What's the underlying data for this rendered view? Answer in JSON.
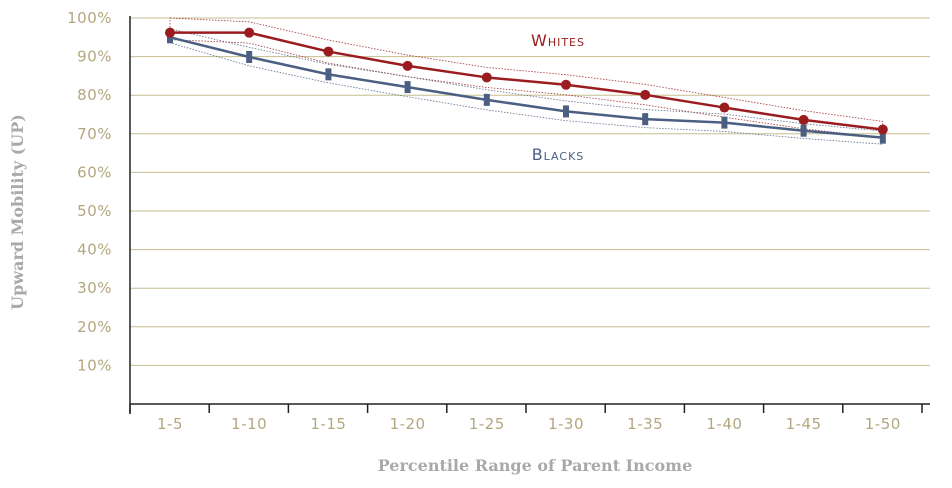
{
  "chart_data": {
    "type": "line",
    "title": "",
    "xlabel": "Percentile Range of Parent Income",
    "ylabel": "Upward Mobility (UP)",
    "categories": [
      "1-5",
      "1-10",
      "1-15",
      "1-20",
      "1-25",
      "1-30",
      "1-35",
      "1-40",
      "1-45",
      "1-50"
    ],
    "ylim": [
      0,
      100
    ],
    "yticks": [
      "10%",
      "20%",
      "30%",
      "40%",
      "50%",
      "60%",
      "70%",
      "80%",
      "90%",
      "100%"
    ],
    "grid": "horizontal",
    "legend": "inline labels",
    "series": [
      {
        "name": "Whites",
        "display_label": "Whites",
        "color": "#9b1c1f",
        "marker": "circle",
        "values": [
          96.2,
          96.2,
          91.3,
          87.6,
          84.6,
          82.7,
          80.1,
          76.8,
          73.6,
          71.1
        ],
        "band_upper": [
          100,
          99.0,
          94.3,
          90.4,
          87.2,
          85.3,
          82.8,
          79.4,
          76.0,
          73.2
        ],
        "band_lower": [
          94.4,
          93.5,
          88.3,
          84.8,
          82.0,
          80.1,
          77.5,
          74.3,
          71.3,
          69.0
        ]
      },
      {
        "name": "Blacks",
        "display_label": "Blacks",
        "color": "#4a5f82",
        "marker": "square",
        "values": [
          95.0,
          89.9,
          85.4,
          82.1,
          78.8,
          75.8,
          73.8,
          72.9,
          70.8,
          69.0
        ],
        "band_upper": [
          97.2,
          92.4,
          88.0,
          84.8,
          81.4,
          78.5,
          76.3,
          75.1,
          72.6,
          70.7
        ],
        "band_lower": [
          93.6,
          87.6,
          83.2,
          79.6,
          76.2,
          73.4,
          71.6,
          70.6,
          68.8,
          67.3
        ]
      }
    ]
  },
  "colors": {
    "grid": "#c6bd8f",
    "axis": "#222222",
    "tick_text": "#b3a77f",
    "axis_title": "#a9a9a9"
  }
}
